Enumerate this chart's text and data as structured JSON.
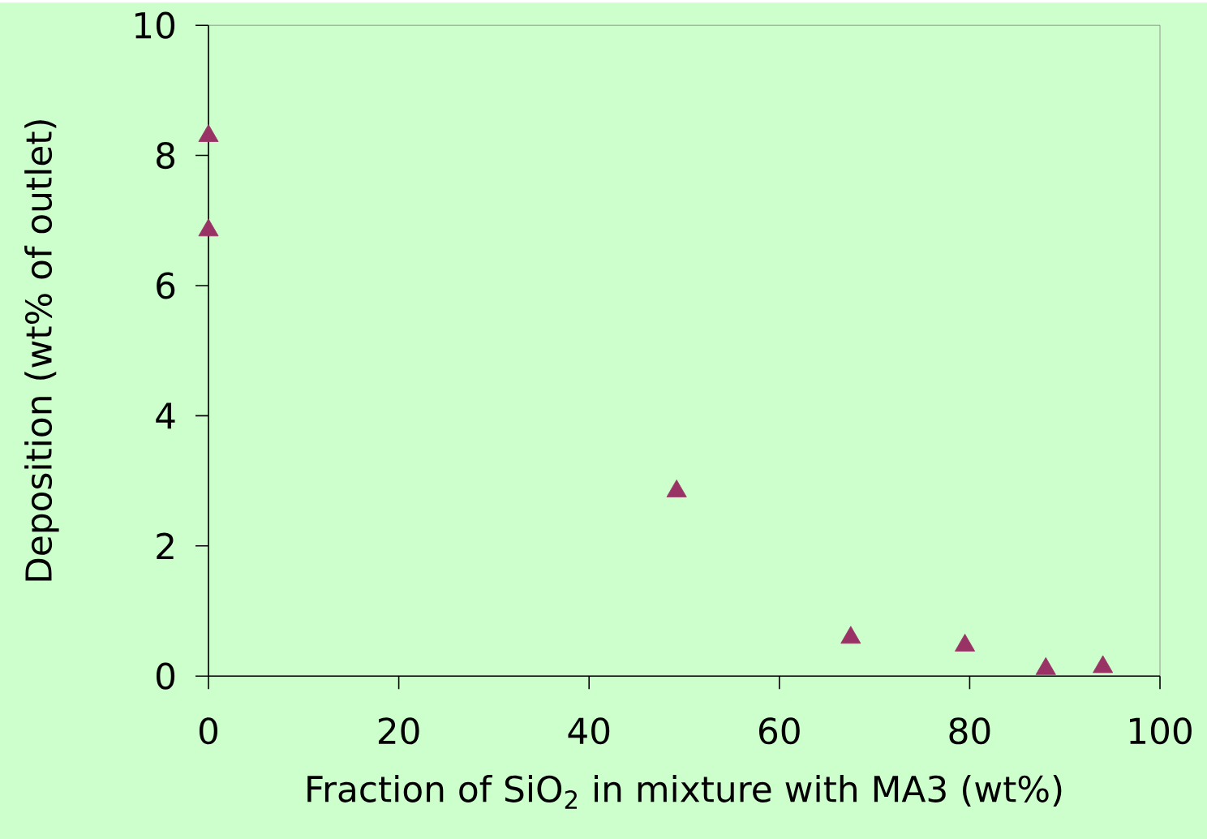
{
  "chart_data": {
    "type": "scatter",
    "xlabel": "Fraction of SiO$_{2}$ in mixture with MA3 (wt%)",
    "ylabel": "Deposition (wt% of outlet)",
    "x": [
      0,
      0,
      49.2,
      67.5,
      79.5,
      88,
      94
    ],
    "series": [
      {
        "color": "#993366",
        "values": [
          8.3,
          6.85,
          2.84,
          0.59,
          0.47,
          0.11,
          0.14
        ]
      }
    ],
    "marker": "triangle",
    "xlim": [
      0,
      100
    ],
    "ylim": [
      0,
      10
    ],
    "xticks": [
      0,
      20,
      40,
      60,
      80,
      100
    ],
    "yticks": [
      0,
      2,
      4,
      6,
      8,
      10
    ]
  }
}
